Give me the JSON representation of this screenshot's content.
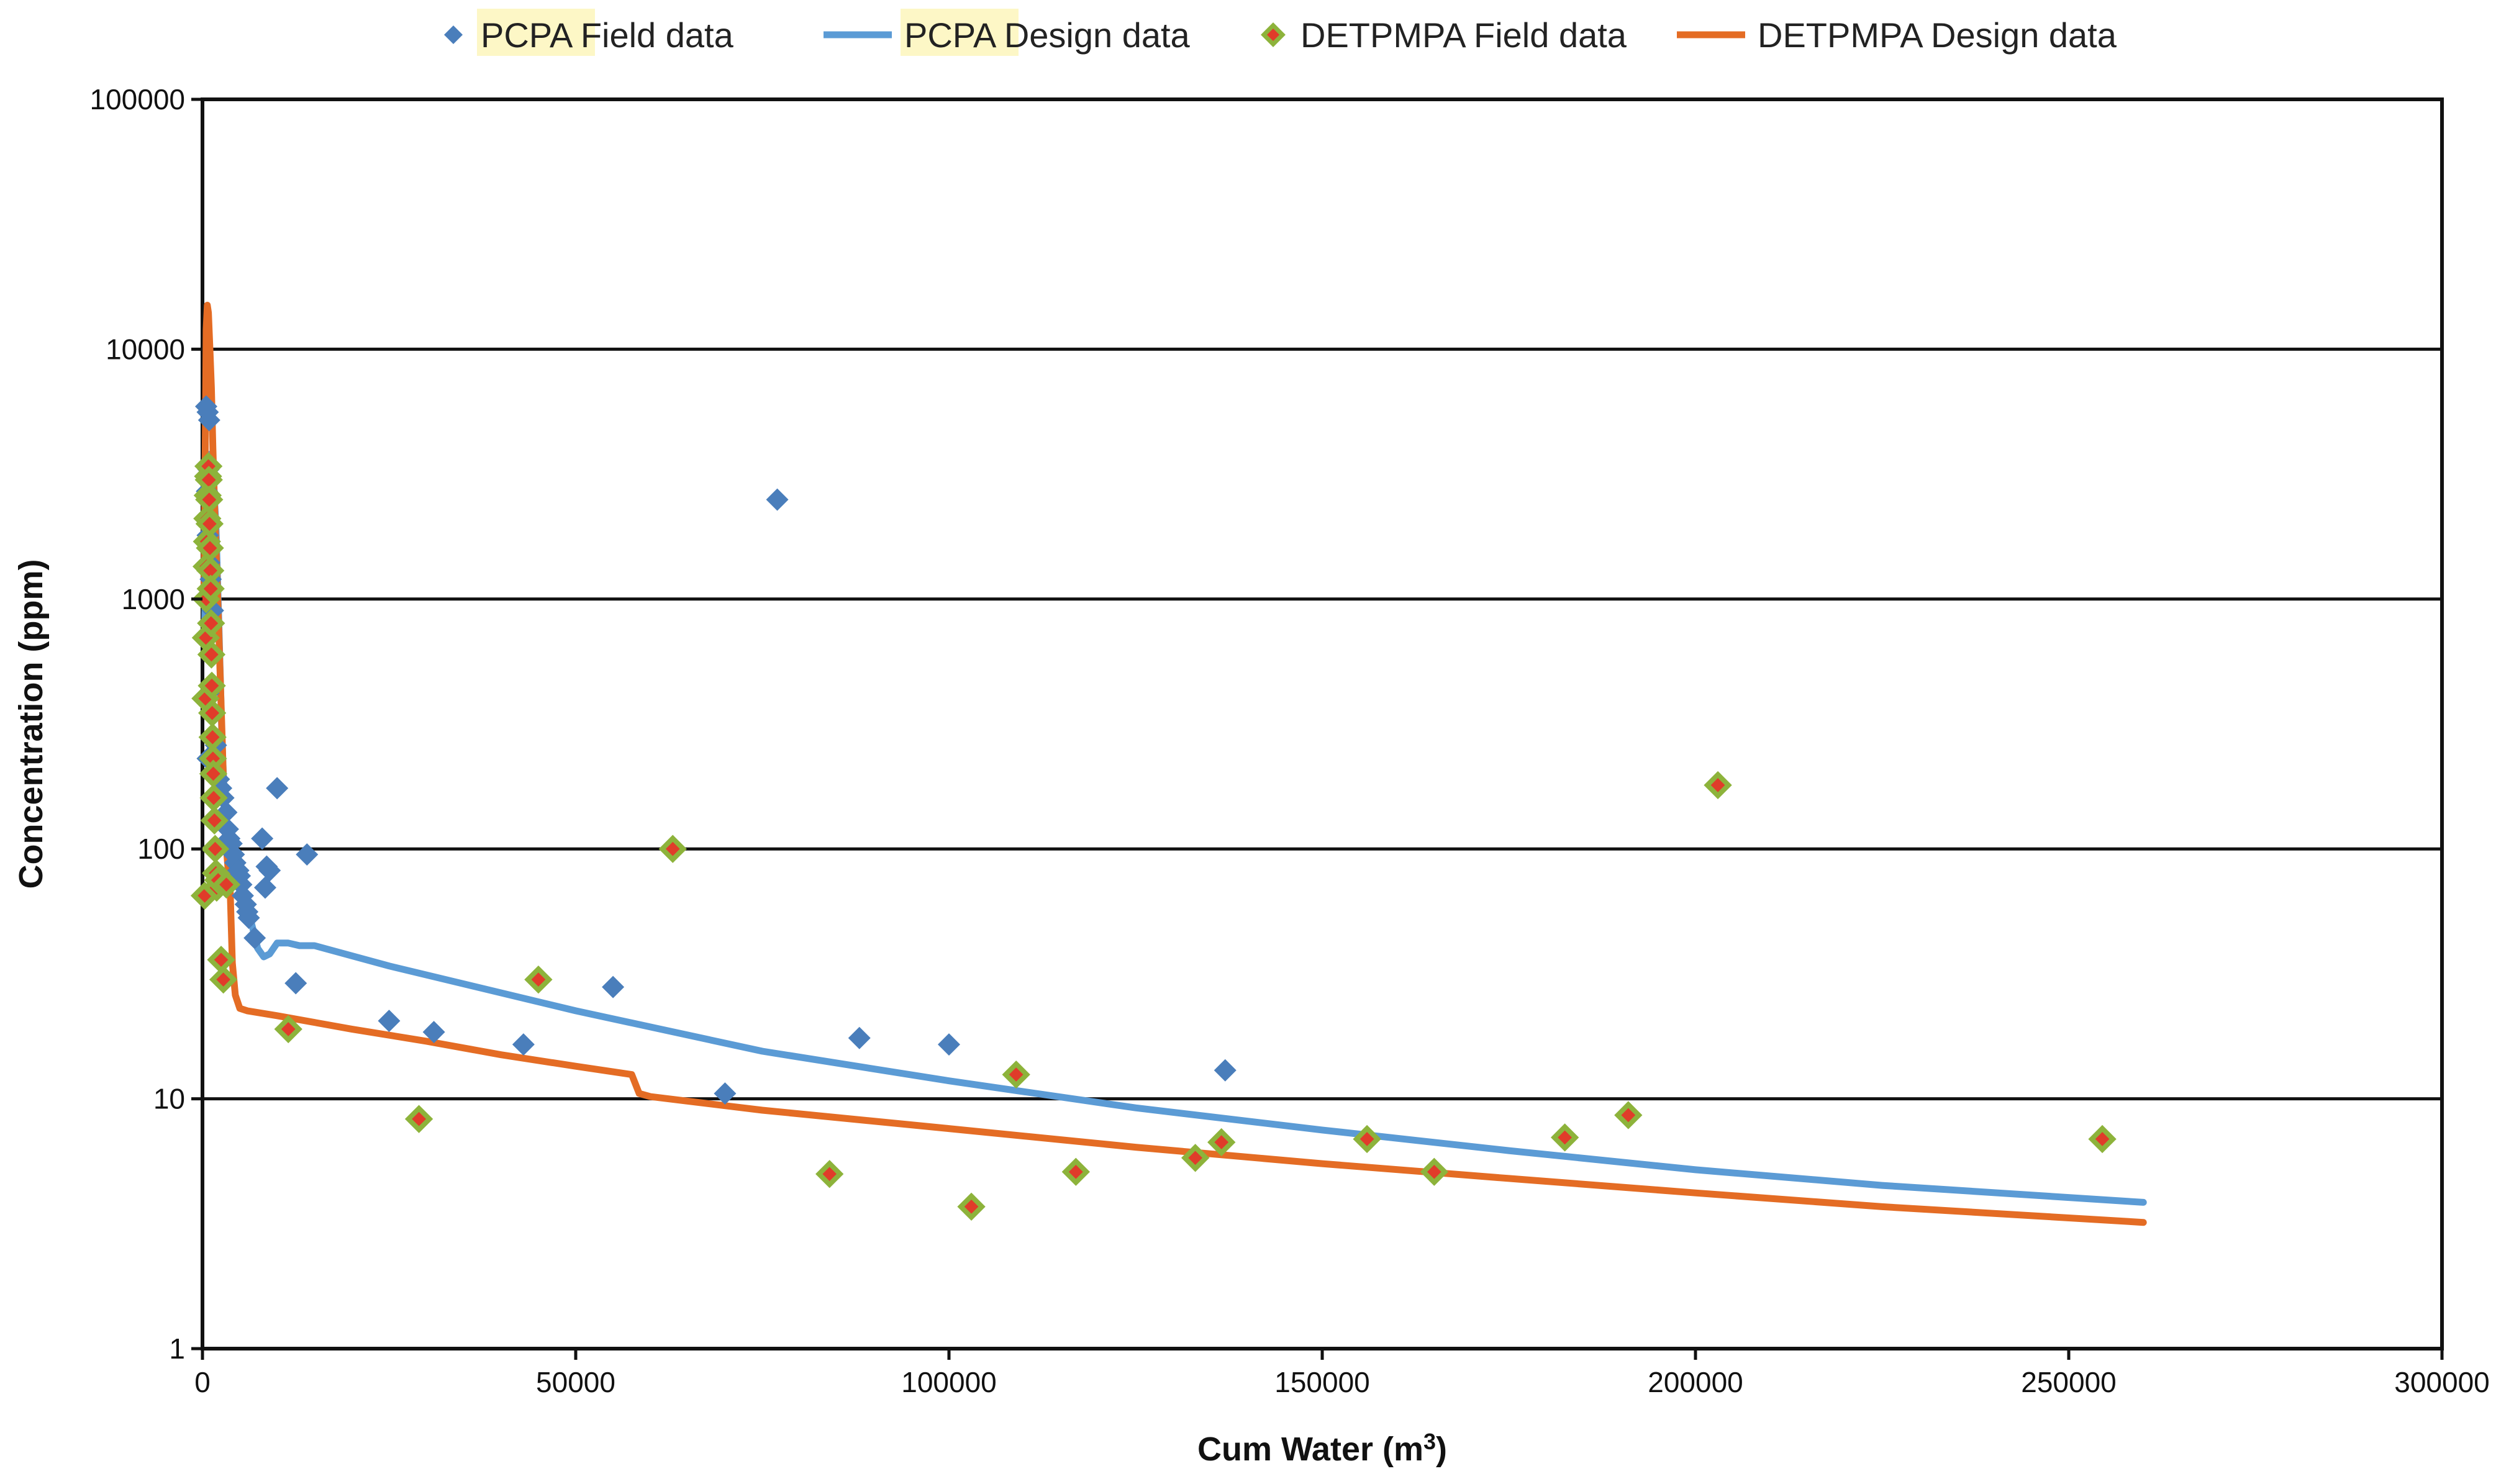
{
  "chart_data": {
    "type": "scatter",
    "title": "",
    "xlabel": "Cum Water (m",
    "xlabel_sup": "3",
    "xlabel_close": ")",
    "ylabel": "Concentration (ppm)",
    "xlim": [
      0,
      300000
    ],
    "ylim": [
      1,
      100000
    ],
    "yscale": "log",
    "x_ticks": [
      {
        "v": 0,
        "label": "0"
      },
      {
        "v": 50000,
        "label": "50000"
      },
      {
        "v": 100000,
        "label": "100000"
      },
      {
        "v": 150000,
        "label": "150000"
      },
      {
        "v": 200000,
        "label": "200000"
      },
      {
        "v": 250000,
        "label": "250000"
      },
      {
        "v": 300000,
        "label": "300000"
      }
    ],
    "y_ticks": [
      {
        "v": 1,
        "label": "1"
      },
      {
        "v": 10,
        "label": "10"
      },
      {
        "v": 100,
        "label": "100"
      },
      {
        "v": 1000,
        "label": "1000"
      },
      {
        "v": 10000,
        "label": "10000"
      },
      {
        "v": 100000,
        "label": "100000"
      }
    ],
    "grid": "horizontal",
    "legend_position": "top",
    "legend": [
      {
        "prefix": "PCPA",
        "label": "Field data",
        "kind": "marker",
        "series": "pcpa_field"
      },
      {
        "prefix": "PCPA",
        "label": "Design data",
        "kind": "line",
        "series": "pcpa_design"
      },
      {
        "prefix": "DETPMPA",
        "label": "Field data",
        "kind": "marker",
        "series": "detpmpa_field"
      },
      {
        "prefix": "DETPMPA",
        "label": "Design data",
        "kind": "line",
        "series": "detpmpa_design"
      }
    ],
    "series": [
      {
        "key": "pcpa_field",
        "name": "PCPA Field data",
        "type": "scatter",
        "color": "#4a7ebb",
        "points": [
          [
            500,
            5900
          ],
          [
            700,
            5600
          ],
          [
            900,
            5200
          ],
          [
            800,
            3300
          ],
          [
            600,
            2700
          ],
          [
            1000,
            2500
          ],
          [
            700,
            1800
          ],
          [
            900,
            1400
          ],
          [
            1100,
            1200
          ],
          [
            1400,
            900
          ],
          [
            600,
            700
          ],
          [
            800,
            420
          ],
          [
            1200,
            350
          ],
          [
            700,
            230
          ],
          [
            1800,
            260
          ],
          [
            2200,
            190
          ],
          [
            2500,
            175
          ],
          [
            2800,
            160
          ],
          [
            3200,
            140
          ],
          [
            3400,
            120
          ],
          [
            3600,
            110
          ],
          [
            3900,
            105
          ],
          [
            4200,
            95
          ],
          [
            4400,
            88
          ],
          [
            4800,
            82
          ],
          [
            5000,
            78
          ],
          [
            5200,
            72
          ],
          [
            5400,
            65
          ],
          [
            5800,
            60
          ],
          [
            6000,
            56
          ],
          [
            6200,
            53
          ],
          [
            7000,
            44
          ],
          [
            8000,
            110
          ],
          [
            8600,
            85
          ],
          [
            9000,
            82
          ],
          [
            8400,
            70
          ],
          [
            10000,
            175
          ],
          [
            12500,
            29
          ],
          [
            14000,
            95
          ],
          [
            25000,
            20.5
          ],
          [
            31000,
            18.5
          ],
          [
            43000,
            16.5
          ],
          [
            55000,
            28
          ],
          [
            70000,
            10.5
          ],
          [
            77000,
            2500
          ],
          [
            88000,
            17.5
          ],
          [
            100000,
            16.5
          ],
          [
            137000,
            13
          ]
        ]
      },
      {
        "key": "pcpa_design",
        "name": "PCPA Design data",
        "type": "line",
        "color": "#5b9bd5",
        "points": [
          [
            300,
            800
          ],
          [
            500,
            2000
          ],
          [
            700,
            3500
          ],
          [
            1000,
            3800
          ],
          [
            1400,
            3200
          ],
          [
            1800,
            2000
          ],
          [
            2200,
            800
          ],
          [
            2600,
            280
          ],
          [
            3000,
            140
          ],
          [
            3500,
            110
          ],
          [
            4200,
            95
          ],
          [
            5000,
            78
          ],
          [
            5800,
            62
          ],
          [
            6600,
            50
          ],
          [
            7400,
            40
          ],
          [
            8200,
            37
          ],
          [
            9000,
            38
          ],
          [
            10000,
            42
          ],
          [
            11500,
            42
          ],
          [
            13000,
            41
          ],
          [
            15000,
            41
          ],
          [
            25000,
            34
          ],
          [
            50000,
            22.5
          ],
          [
            75000,
            15.5
          ],
          [
            100000,
            11.8
          ],
          [
            125000,
            9.2
          ],
          [
            150000,
            7.5
          ],
          [
            175000,
            6.2
          ],
          [
            200000,
            5.2
          ],
          [
            225000,
            4.5
          ],
          [
            260000,
            3.85
          ]
        ]
      },
      {
        "key": "detpmpa_field",
        "name": "DETPMPA Field data",
        "type": "scatter",
        "color": "#8db33b",
        "fill": "#e03c2a",
        "points": [
          [
            300,
            65
          ],
          [
            400,
            400
          ],
          [
            450,
            700
          ],
          [
            500,
            1000
          ],
          [
            550,
            1350
          ],
          [
            600,
            1700
          ],
          [
            650,
            2100
          ],
          [
            700,
            2600
          ],
          [
            750,
            3100
          ],
          [
            800,
            3400
          ],
          [
            850,
            3000
          ],
          [
            900,
            2500
          ],
          [
            950,
            2000
          ],
          [
            1000,
            1600
          ],
          [
            1050,
            1300
          ],
          [
            1100,
            1100
          ],
          [
            1150,
            800
          ],
          [
            1200,
            600
          ],
          [
            1250,
            450
          ],
          [
            1300,
            350
          ],
          [
            1350,
            280
          ],
          [
            1400,
            230
          ],
          [
            1450,
            200
          ],
          [
            1500,
            160
          ],
          [
            1600,
            130
          ],
          [
            1700,
            100
          ],
          [
            1800,
            80
          ],
          [
            1900,
            70
          ],
          [
            2100,
            75
          ],
          [
            2500,
            36
          ],
          [
            2800,
            30
          ],
          [
            3200,
            72
          ],
          [
            11500,
            19
          ],
          [
            29000,
            8.3
          ],
          [
            45000,
            30
          ],
          [
            63000,
            100
          ],
          [
            84000,
            5
          ],
          [
            103000,
            3.7
          ],
          [
            109000,
            12.5
          ],
          [
            117000,
            5.1
          ],
          [
            133000,
            5.8
          ],
          [
            136500,
            6.7
          ],
          [
            156000,
            6.9
          ],
          [
            165000,
            5.1
          ],
          [
            182500,
            7
          ],
          [
            191000,
            8.6
          ],
          [
            203000,
            180
          ],
          [
            254500,
            6.9
          ]
        ]
      },
      {
        "key": "detpmpa_design",
        "name": "DETPMPA Design data",
        "type": "line",
        "color": "#e46c24",
        "points": [
          [
            200,
            1000
          ],
          [
            400,
            5000
          ],
          [
            500,
            12000
          ],
          [
            650,
            15000
          ],
          [
            800,
            14000
          ],
          [
            1000,
            10000
          ],
          [
            1200,
            7000
          ],
          [
            1400,
            4000
          ],
          [
            1700,
            2000
          ],
          [
            2100,
            900
          ],
          [
            2600,
            300
          ],
          [
            3000,
            120
          ],
          [
            3400,
            85
          ],
          [
            3700,
            70
          ],
          [
            4000,
            35
          ],
          [
            4400,
            26
          ],
          [
            5000,
            23
          ],
          [
            6000,
            22.5
          ],
          [
            10000,
            21.5
          ],
          [
            20000,
            19
          ],
          [
            30000,
            17
          ],
          [
            40000,
            15
          ],
          [
            50000,
            13.5
          ],
          [
            57500,
            12.5
          ],
          [
            58500,
            10.5
          ],
          [
            60000,
            10.2
          ],
          [
            75000,
            9
          ],
          [
            100000,
            7.6
          ],
          [
            125000,
            6.4
          ],
          [
            150000,
            5.5
          ],
          [
            175000,
            4.8
          ],
          [
            200000,
            4.2
          ],
          [
            225000,
            3.7
          ],
          [
            260000,
            3.2
          ]
        ]
      }
    ]
  }
}
